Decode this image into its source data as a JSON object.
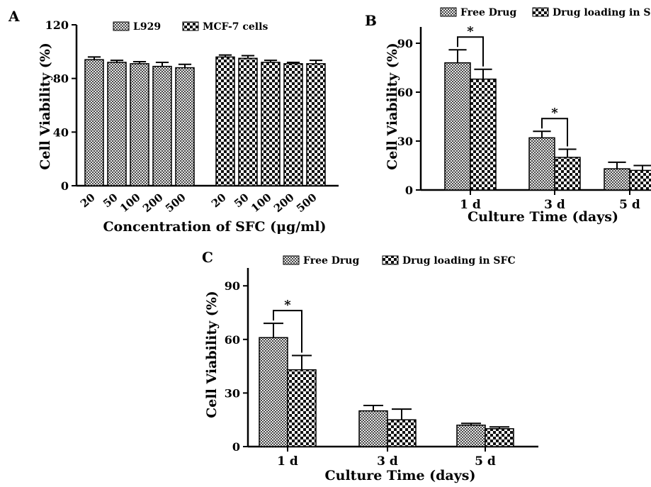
{
  "chart_data": [
    {
      "id": "A",
      "type": "bar",
      "panel_label": "A",
      "ylabel": "Cell Viability (%)",
      "xlabel": "Concentration of SFC (μg/ml)",
      "ylim": [
        0,
        120
      ],
      "yticks": [
        0,
        40,
        80,
        120
      ],
      "categories": [
        "20",
        "50",
        "100",
        "200",
        "500"
      ],
      "series": [
        {
          "name": "L929",
          "pattern": "dense-check",
          "values": [
            94,
            92,
            91,
            89,
            88
          ],
          "errors": [
            2,
            1.5,
            1.5,
            3,
            2.5
          ]
        },
        {
          "name": "MCF-7 cells",
          "pattern": "coarse-check",
          "values": [
            96,
            95,
            92,
            91,
            91
          ],
          "errors": [
            1.5,
            2,
            1.5,
            1,
            2.5
          ]
        }
      ],
      "legend": "top",
      "grid": false
    },
    {
      "id": "B",
      "type": "bar",
      "panel_label": "B",
      "ylabel": "Cell Viability (%)",
      "xlabel": "Culture Time (days)",
      "ylim": [
        0,
        100
      ],
      "yticks": [
        0,
        30,
        60,
        90
      ],
      "categories": [
        "1 d",
        "3 d",
        "5 d"
      ],
      "series": [
        {
          "name": "Free Drug",
          "pattern": "dense-check",
          "values": [
            78,
            32,
            13
          ],
          "errors": [
            8,
            4,
            4
          ]
        },
        {
          "name": "Drug loading in SFC",
          "pattern": "coarse-check",
          "values": [
            68,
            20,
            12
          ],
          "errors": [
            6,
            5,
            3
          ]
        }
      ],
      "annotations": [
        {
          "text": "*",
          "category": "1 d"
        },
        {
          "text": "*",
          "category": "3 d"
        }
      ],
      "legend": "top",
      "grid": false
    },
    {
      "id": "C",
      "type": "bar",
      "panel_label": "C",
      "ylabel": "Cell Viability (%)",
      "xlabel": "Culture Time (days)",
      "ylim": [
        0,
        100
      ],
      "yticks": [
        0,
        30,
        60,
        90
      ],
      "categories": [
        "1 d",
        "3 d",
        "5 d"
      ],
      "series": [
        {
          "name": "Free Drug",
          "pattern": "dense-check",
          "values": [
            61,
            20,
            12
          ],
          "errors": [
            8,
            3,
            1
          ]
        },
        {
          "name": "Drug loading in SFC",
          "pattern": "coarse-check",
          "values": [
            43,
            15,
            10
          ],
          "errors": [
            8,
            6,
            1
          ]
        }
      ],
      "annotations": [
        {
          "text": "*",
          "category": "1 d"
        }
      ],
      "legend": "top",
      "grid": false
    }
  ]
}
